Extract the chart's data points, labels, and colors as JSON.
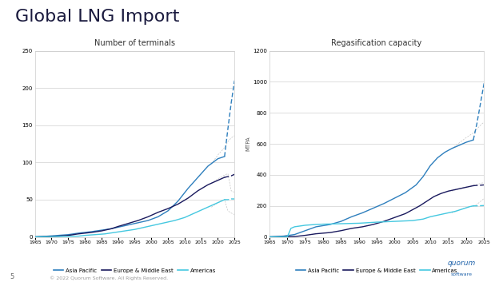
{
  "title": "Global LNG Import",
  "title_fontsize": 16,
  "title_color": "#1a1a3e",
  "chart1_title": "Number of terminals",
  "chart2_title": "Regasification capacity",
  "chart2_ylabel": "MTPA",
  "x_ticks": [
    1965,
    1970,
    1975,
    1980,
    1985,
    1990,
    1995,
    2000,
    2005,
    2010,
    2015,
    2020,
    2025
  ],
  "chart1_ylim": [
    0,
    250
  ],
  "chart1_yticks": [
    0,
    50,
    100,
    150,
    200,
    250
  ],
  "chart2_ylim": [
    0,
    1200
  ],
  "chart2_yticks": [
    0,
    200,
    400,
    600,
    800,
    1000,
    1200
  ],
  "legend_labels": [
    "Asia Pacific",
    "Europe & Middle East",
    "Americas"
  ],
  "colors": {
    "asia_pacific": "#2e7fbd",
    "europe_me": "#1a1a5e",
    "americas": "#45c8e0"
  },
  "proj_color": "#aaaaaa",
  "bg_color": "#ffffff",
  "panel_bg": "#ffffff",
  "grid_color": "#d0d0d0",
  "footer_text": "© 2022 Quorum Software. All Rights Reserved.",
  "page_num": "5"
}
